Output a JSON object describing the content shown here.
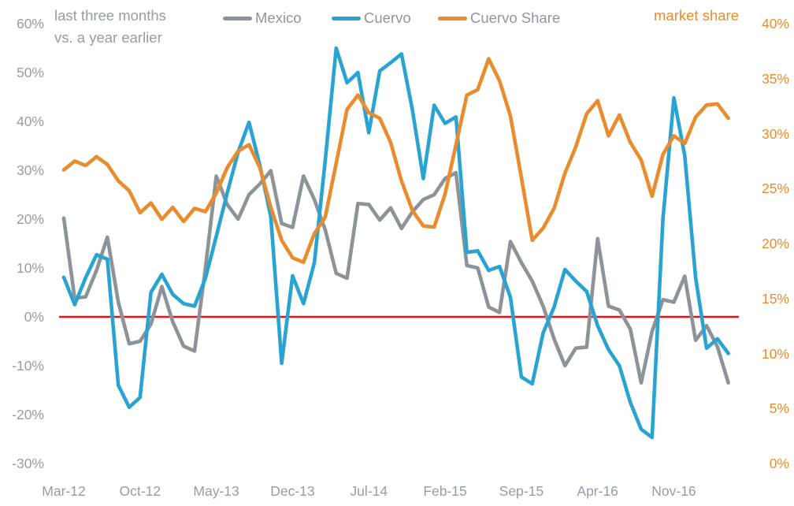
{
  "header": {
    "title_line1": "last three months",
    "title_line2": "vs. a year earlier",
    "right_axis_title": "market share"
  },
  "legend": {
    "items": [
      {
        "label": "Mexico",
        "color": "#8c9399"
      },
      {
        "label": "Cuervo",
        "color": "#29a3d2"
      },
      {
        "label": "Cuervo Share",
        "color": "#e98c2e"
      }
    ]
  },
  "colors": {
    "background": "#ffffff",
    "text_gray": "#959da5",
    "legend_text": "#8d97a1",
    "zero_line": "#ee1111",
    "mexico": "#8c9399",
    "cuervo": "#29a3d2",
    "cuervo_share": "#e98c2e"
  },
  "chart_data": {
    "type": "line",
    "title": "",
    "subtitle": "last three months vs. a year earlier",
    "n_points": 62,
    "x_start": "Mar-12",
    "x_frequency": "monthly",
    "x_tick_labels": [
      "Mar-12",
      "Oct-12",
      "May-13",
      "Dec-13",
      "Jul-14",
      "Feb-15",
      "Sep-15",
      "Apr-16",
      "Nov-16"
    ],
    "x_tick_month_indices": [
      0,
      7,
      14,
      21,
      28,
      35,
      42,
      49,
      56
    ],
    "grid": "off",
    "legend_position": "top-center",
    "left_axis": {
      "range": [
        -30,
        60
      ],
      "tick_step": 10,
      "tick_values": [
        60,
        50,
        40,
        30,
        20,
        10,
        0,
        -10,
        -20,
        -30
      ],
      "tick_labels": [
        "60%",
        "50%",
        "40%",
        "30%",
        "20%",
        "10%",
        "0%",
        "-10%",
        "-20%",
        "-30%"
      ],
      "unit": "%"
    },
    "right_axis": {
      "label": "market share",
      "range": [
        0,
        40
      ],
      "tick_step": 5,
      "tick_values": [
        40,
        35,
        30,
        25,
        20,
        15,
        10,
        5,
        0
      ],
      "tick_labels": [
        "40%",
        "35%",
        "30%",
        "25%",
        "20%",
        "15%",
        "10%",
        "5%",
        "0%"
      ],
      "unit": "%"
    },
    "zero_line": {
      "axis": "left",
      "value": 0,
      "color": "#ee1111"
    },
    "series": [
      {
        "name": "Mexico",
        "axis": "left",
        "color": "#8c9399",
        "values": [
          20.2,
          3.8,
          4.1,
          9.5,
          16.3,
          3.0,
          -5.5,
          -5.0,
          -1.5,
          6.2,
          -1.0,
          -6.0,
          -7.0,
          10.0,
          28.8,
          23.0,
          20.0,
          25.0,
          27.2,
          29.9,
          19.1,
          18.3,
          28.8,
          24.0,
          17.8,
          8.9,
          7.9,
          23.2,
          23.0,
          19.8,
          22.3,
          18.1,
          21.5,
          24.0,
          25.0,
          28.3,
          29.5,
          10.5,
          10.0,
          2.0,
          0.9,
          15.4,
          11.1,
          7.3,
          2.2,
          -4.5,
          -10.0,
          -6.4,
          -6.2,
          16.0,
          2.2,
          1.4,
          -2.5,
          -13.5,
          -3.0,
          3.5,
          3.0,
          8.3,
          -4.8,
          -1.8,
          -6.1,
          -13.5
        ]
      },
      {
        "name": "Cuervo",
        "axis": "left",
        "color": "#29a3d2",
        "values": [
          8.1,
          2.5,
          8.0,
          12.7,
          11.8,
          -14.0,
          -18.5,
          -16.5,
          5.0,
          8.7,
          4.6,
          2.7,
          2.2,
          7.9,
          16.5,
          25.3,
          33.7,
          39.8,
          31.0,
          20.5,
          -9.5,
          8.4,
          2.7,
          11.1,
          32.0,
          55.0,
          47.9,
          50.0,
          37.7,
          50.3,
          52.0,
          53.8,
          42.3,
          28.3,
          43.3,
          39.6,
          40.9,
          13.2,
          13.5,
          9.5,
          10.3,
          4.0,
          -12.3,
          -13.7,
          -3.3,
          2.0,
          9.7,
          7.3,
          5.2,
          -1.8,
          -6.7,
          -10.0,
          -17.5,
          -23.0,
          -24.7,
          20.0,
          44.8,
          33.0,
          8.0,
          -6.4,
          -4.5,
          -7.5
        ]
      },
      {
        "name": "Cuervo Share",
        "axis": "right",
        "color": "#e98c2e",
        "values": [
          26.7,
          27.5,
          27.1,
          27.9,
          27.2,
          25.7,
          24.8,
          22.8,
          23.7,
          22.2,
          23.3,
          22.0,
          23.2,
          22.9,
          24.6,
          26.9,
          28.4,
          29.0,
          26.9,
          23.3,
          20.3,
          18.7,
          18.3,
          20.9,
          22.4,
          27.3,
          32.2,
          33.5,
          31.9,
          31.4,
          29.2,
          25.7,
          23.0,
          21.6,
          21.5,
          24.5,
          29.0,
          33.5,
          34.0,
          36.8,
          34.8,
          31.6,
          26.0,
          20.3,
          21.4,
          23.2,
          26.4,
          28.8,
          31.8,
          33.0,
          29.8,
          31.7,
          29.2,
          27.6,
          24.3,
          28.1,
          29.8,
          29.1,
          31.5,
          32.6,
          32.7,
          31.4
        ]
      }
    ]
  }
}
